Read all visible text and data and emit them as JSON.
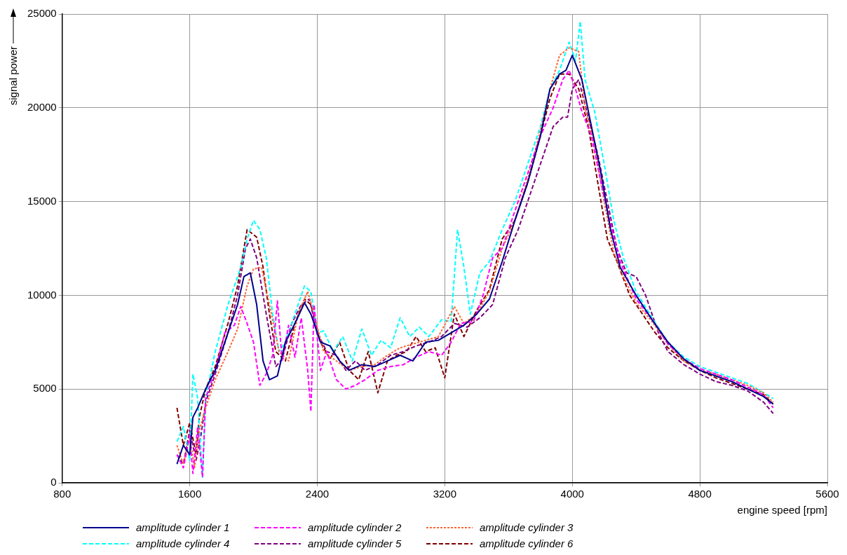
{
  "chart_data": {
    "type": "line",
    "xlabel": "engine speed [rpm]",
    "ylabel": "signal power",
    "xlim": [
      800,
      5600
    ],
    "xticks": [
      800,
      1600,
      2400,
      3200,
      4000,
      4800,
      5600
    ],
    "ylim": [
      0,
      25000
    ],
    "yticks": [
      0,
      5000,
      10000,
      15000,
      20000,
      25000
    ],
    "grid": true,
    "legend": "bottom",
    "marker": "none",
    "series": [
      {
        "name": "amplitude cylinder 1",
        "color": "#00008b",
        "line_style": "solid",
        "x": [
          1520,
          1560,
          1600,
          1620,
          1650,
          1700,
          1760,
          1840,
          1900,
          1940,
          1980,
          2020,
          2060,
          2100,
          2150,
          2200,
          2260,
          2320,
          2360,
          2420,
          2480,
          2540,
          2600,
          2680,
          2760,
          2840,
          2920,
          3000,
          3080,
          3160,
          3240,
          3320,
          3400,
          3480,
          3560,
          3640,
          3720,
          3800,
          3860,
          3920,
          3960,
          4000,
          4060,
          4120,
          4180,
          4240,
          4300,
          4400,
          4500,
          4600,
          4700,
          4800,
          4900,
          5000,
          5100,
          5200,
          5260
        ],
        "values": [
          1000,
          2000,
          1500,
          3500,
          4000,
          5000,
          6000,
          8000,
          9500,
          11000,
          11200,
          9500,
          6500,
          5500,
          5700,
          7500,
          8500,
          9600,
          9000,
          7500,
          7300,
          6500,
          6000,
          6300,
          6200,
          6500,
          6800,
          6500,
          7500,
          7600,
          8000,
          8400,
          9000,
          9800,
          11800,
          14000,
          16000,
          18500,
          21000,
          21800,
          22000,
          22800,
          21500,
          19000,
          16500,
          13500,
          11500,
          10000,
          8700,
          7500,
          6600,
          6000,
          5700,
          5400,
          5000,
          4600,
          4200
        ]
      },
      {
        "name": "amplitude cylinder 2",
        "color": "#ff00ff",
        "line_style": "dashed",
        "x": [
          1520,
          1560,
          1600,
          1620,
          1650,
          1680,
          1700,
          1760,
          1820,
          1880,
          1920,
          1960,
          2000,
          2040,
          2080,
          2120,
          2150,
          2180,
          2220,
          2260,
          2300,
          2340,
          2360,
          2380,
          2420,
          2460,
          2520,
          2580,
          2640,
          2700,
          2780,
          2860,
          2940,
          3020,
          3100,
          3180,
          3240,
          3300,
          3380,
          3440,
          3500,
          3560,
          3640,
          3720,
          3800,
          3880,
          3940,
          3980,
          4020,
          4060,
          4120,
          4180,
          4240,
          4300,
          4400,
          4500,
          4600,
          4700,
          4800,
          4900,
          5000,
          5100,
          5200,
          5260
        ],
        "values": [
          1500,
          800,
          2500,
          500,
          3000,
          300,
          4500,
          6000,
          8000,
          8400,
          9400,
          8500,
          7500,
          5200,
          5800,
          6800,
          9700,
          6500,
          8400,
          6700,
          8800,
          6000,
          3800,
          9500,
          6000,
          7000,
          5500,
          5000,
          5200,
          5500,
          6000,
          6200,
          6300,
          6700,
          7000,
          6800,
          7500,
          8500,
          8600,
          10000,
          12000,
          12500,
          14500,
          16500,
          18500,
          20000,
          21500,
          22000,
          21000,
          19800,
          18500,
          16000,
          13800,
          11800,
          9800,
          8700,
          7400,
          6600,
          6100,
          5800,
          5500,
          5100,
          4700,
          4000
        ]
      },
      {
        "name": "amplitude cylinder 3",
        "color": "#ff6633",
        "line_style": "dotted",
        "x": [
          1520,
          1560,
          1600,
          1630,
          1660,
          1700,
          1760,
          1840,
          1900,
          1960,
          2000,
          2050,
          2100,
          2160,
          2220,
          2280,
          2340,
          2380,
          2440,
          2520,
          2600,
          2680,
          2760,
          2840,
          2920,
          3000,
          3080,
          3160,
          3260,
          3320,
          3400,
          3480,
          3560,
          3640,
          3720,
          3800,
          3860,
          3920,
          3980,
          4040,
          4080,
          4140,
          4200,
          4260,
          4320,
          4400,
          4500,
          4600,
          4700,
          4800,
          4900,
          5000,
          5100,
          5200,
          5260
        ],
        "values": [
          2000,
          1000,
          2500,
          800,
          2800,
          4000,
          5500,
          7000,
          8200,
          10500,
          11400,
          11500,
          9500,
          7000,
          6500,
          9000,
          10200,
          9000,
          7000,
          6500,
          6000,
          6200,
          6300,
          6800,
          7200,
          7400,
          7600,
          7800,
          9400,
          8500,
          9000,
          10200,
          12500,
          14000,
          16200,
          18800,
          21000,
          22800,
          23200,
          23000,
          20000,
          18000,
          15000,
          12300,
          11000,
          9600,
          8600,
          7400,
          6500,
          6000,
          5800,
          5500,
          5200,
          4800,
          4300
        ]
      },
      {
        "name": "amplitude cylinder 4",
        "color": "#00ffff",
        "line_style": "dashed",
        "x": [
          1520,
          1560,
          1600,
          1620,
          1650,
          1680,
          1700,
          1760,
          1840,
          1920,
          1960,
          2000,
          2040,
          2080,
          2120,
          2160,
          2200,
          2260,
          2320,
          2360,
          2400,
          2440,
          2500,
          2560,
          2620,
          2680,
          2740,
          2800,
          2860,
          2920,
          2980,
          3040,
          3100,
          3180,
          3240,
          3280,
          3320,
          3360,
          3420,
          3480,
          3560,
          3640,
          3720,
          3800,
          3860,
          3920,
          3980,
          4020,
          4050,
          4080,
          4140,
          4200,
          4260,
          4320,
          4400,
          4500,
          4600,
          4700,
          4800,
          4900,
          5000,
          5100,
          5200,
          5260
        ],
        "values": [
          2200,
          3000,
          1200,
          5800,
          4500,
          300,
          4500,
          7000,
          9500,
          11500,
          13000,
          14000,
          13500,
          12000,
          9000,
          7000,
          7500,
          9000,
          10500,
          10200,
          8000,
          8100,
          7000,
          7800,
          6500,
          8200,
          6800,
          7600,
          7200,
          8800,
          7800,
          8300,
          7800,
          8700,
          8600,
          13500,
          11500,
          9000,
          11200,
          11800,
          13500,
          15000,
          17000,
          19000,
          21000,
          22000,
          23500,
          22500,
          24600,
          21500,
          19800,
          17000,
          14000,
          12000,
          10200,
          8800,
          7500,
          6700,
          6200,
          5900,
          5600,
          5300,
          4800,
          4500
        ]
      },
      {
        "name": "amplitude cylinder 5",
        "color": "#800080",
        "line_style": "dashed",
        "x": [
          1520,
          1560,
          1600,
          1640,
          1670,
          1700,
          1760,
          1840,
          1900,
          1950,
          1980,
          2020,
          2080,
          2140,
          2180,
          2240,
          2300,
          2350,
          2400,
          2460,
          2520,
          2580,
          2640,
          2700,
          2780,
          2860,
          2940,
          3020,
          3100,
          3180,
          3260,
          3340,
          3420,
          3500,
          3580,
          3660,
          3740,
          3820,
          3880,
          3940,
          3970,
          4000,
          4040,
          4100,
          4160,
          4220,
          4280,
          4340,
          4400,
          4460,
          4540,
          4600,
          4700,
          4800,
          4900,
          5000,
          5100,
          5200,
          5260
        ],
        "values": [
          1500,
          1000,
          2800,
          1200,
          2500,
          4300,
          5800,
          8000,
          10000,
          12500,
          13000,
          12000,
          9000,
          6200,
          6600,
          8500,
          9500,
          9800,
          8000,
          7000,
          6800,
          6000,
          6500,
          6000,
          6300,
          6800,
          7000,
          7300,
          7500,
          7800,
          8500,
          8300,
          8800,
          9500,
          12000,
          13500,
          15500,
          17500,
          19000,
          19500,
          19500,
          21000,
          21500,
          19500,
          17500,
          15000,
          12500,
          11200,
          11000,
          10000,
          8000,
          7000,
          6300,
          5800,
          5400,
          5200,
          4900,
          4300,
          3700
        ]
      },
      {
        "name": "amplitude cylinder 6",
        "color": "#800000",
        "line_style": "dashed",
        "x": [
          1520,
          1560,
          1600,
          1640,
          1660,
          1700,
          1760,
          1840,
          1900,
          1960,
          2020,
          2060,
          2100,
          2140,
          2200,
          2260,
          2320,
          2360,
          2420,
          2480,
          2540,
          2600,
          2660,
          2720,
          2780,
          2840,
          2900,
          2960,
          3020,
          3080,
          3140,
          3200,
          3260,
          3320,
          3400,
          3480,
          3560,
          3640,
          3720,
          3800,
          3860,
          3920,
          3980,
          4040,
          4100,
          4160,
          4220,
          4280,
          4360,
          4440,
          4520,
          4600,
          4700,
          4800,
          4900,
          5000,
          5100,
          5200,
          5260
        ],
        "values": [
          4000,
          2000,
          3200,
          1500,
          3500,
          5000,
          6200,
          8500,
          10500,
          13500,
          13100,
          11500,
          9000,
          7000,
          6500,
          8500,
          9800,
          9500,
          7500,
          6600,
          7500,
          6000,
          5500,
          7000,
          4800,
          6500,
          6800,
          7000,
          7800,
          7000,
          7200,
          5600,
          9000,
          7800,
          9200,
          10300,
          13000,
          14000,
          16000,
          18500,
          20500,
          21800,
          21800,
          21000,
          19000,
          16000,
          13000,
          11800,
          10000,
          9000,
          8000,
          7200,
          6500,
          6000,
          5600,
          5300,
          5000,
          4700,
          4200
        ]
      }
    ]
  }
}
